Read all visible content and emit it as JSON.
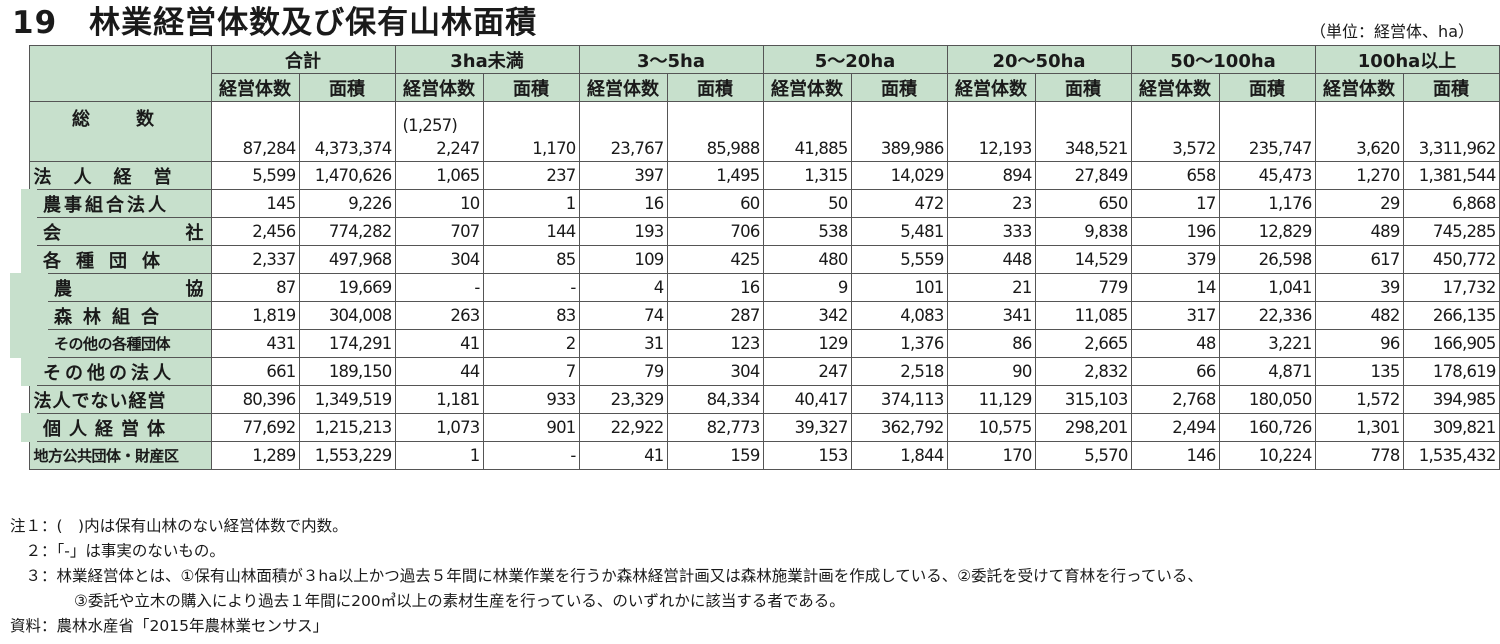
{
  "header": {
    "title": "19　林業経営体数及び保有山林面積",
    "unit": "（単位：経営体、ha）"
  },
  "table": {
    "groups": [
      "合計",
      "3ha未満",
      "3～5ha",
      "5～20ha",
      "20～50ha",
      "50～100ha",
      "100ha以上"
    ],
    "subheaders": [
      "経営体数",
      "面積"
    ],
    "total": {
      "label": "総　数",
      "paren_note": "(1,257)",
      "values": [
        "87,284",
        "4,373,374",
        "2,247",
        "1,170",
        "23,767",
        "85,988",
        "41,885",
        "389,986",
        "12,193",
        "348,521",
        "3,572",
        "235,747",
        "3,620",
        "3,311,962"
      ]
    },
    "rows": [
      {
        "label": "法人経営",
        "values": [
          "5,599",
          "1,470,626",
          "1,065",
          "237",
          "397",
          "1,495",
          "1,315",
          "14,029",
          "894",
          "27,849",
          "658",
          "45,473",
          "1,270",
          "1,381,544"
        ]
      },
      {
        "label": "農事組合法人",
        "values": [
          "145",
          "9,226",
          "10",
          "1",
          "16",
          "60",
          "50",
          "472",
          "23",
          "650",
          "17",
          "1,176",
          "29",
          "6,868"
        ]
      },
      {
        "label_a": "会",
        "label_b": "社",
        "values": [
          "2,456",
          "774,282",
          "707",
          "144",
          "193",
          "706",
          "538",
          "5,481",
          "333",
          "9,838",
          "196",
          "12,829",
          "489",
          "745,285"
        ]
      },
      {
        "label": "各種団体",
        "values": [
          "2,337",
          "497,968",
          "304",
          "85",
          "109",
          "425",
          "480",
          "5,559",
          "448",
          "14,529",
          "379",
          "26,598",
          "617",
          "450,772"
        ]
      },
      {
        "label_a": "農",
        "label_b": "協",
        "values": [
          "87",
          "19,669",
          "-",
          "-",
          "4",
          "16",
          "9",
          "101",
          "21",
          "779",
          "14",
          "1,041",
          "39",
          "17,732"
        ]
      },
      {
        "label": "森林組合",
        "values": [
          "1,819",
          "304,008",
          "263",
          "83",
          "74",
          "287",
          "342",
          "4,083",
          "341",
          "11,085",
          "317",
          "22,336",
          "482",
          "266,135"
        ]
      },
      {
        "label": "その他の各種団体",
        "values": [
          "431",
          "174,291",
          "41",
          "2",
          "31",
          "123",
          "129",
          "1,376",
          "86",
          "2,665",
          "48",
          "3,221",
          "96",
          "166,905"
        ]
      },
      {
        "label": "その他の法人",
        "values": [
          "661",
          "189,150",
          "44",
          "7",
          "79",
          "304",
          "247",
          "2,518",
          "90",
          "2,832",
          "66",
          "4,871",
          "135",
          "178,619"
        ]
      },
      {
        "label": "法人でない経営",
        "values": [
          "80,396",
          "1,349,519",
          "1,181",
          "933",
          "23,329",
          "84,334",
          "40,417",
          "374,113",
          "11,129",
          "315,103",
          "2,768",
          "180,050",
          "1,572",
          "394,985"
        ]
      },
      {
        "label": "個人経営体",
        "values": [
          "77,692",
          "1,215,213",
          "1,073",
          "901",
          "22,922",
          "82,773",
          "39,327",
          "362,792",
          "10,575",
          "298,201",
          "2,494",
          "160,726",
          "1,301",
          "309,821"
        ]
      },
      {
        "label": "地方公共団体・財産区",
        "values": [
          "1,289",
          "1,553,229",
          "1",
          "-",
          "41",
          "159",
          "153",
          "1,844",
          "170",
          "5,570",
          "146",
          "10,224",
          "778",
          "1,535,432"
        ]
      }
    ]
  },
  "notes": {
    "n1": "注１：(　)内は保有山林のない経営体数で内数。",
    "n2": "　２：「-」は事実のないもの。",
    "n3a": "　３：林業経営体とは、①保有山林面積が３ha以上かつ過去５年間に林業作業を行うか森林経営計画又は森林施業計画を作成している、②委託を受けて育林を行っている、",
    "n3b": "③委託や立木の購入により過去１年間に200㎥以上の素材生産を行っている、のいずれかに該当する者である。",
    "source": "資料：農林水産省「2015年農林業センサス」"
  }
}
